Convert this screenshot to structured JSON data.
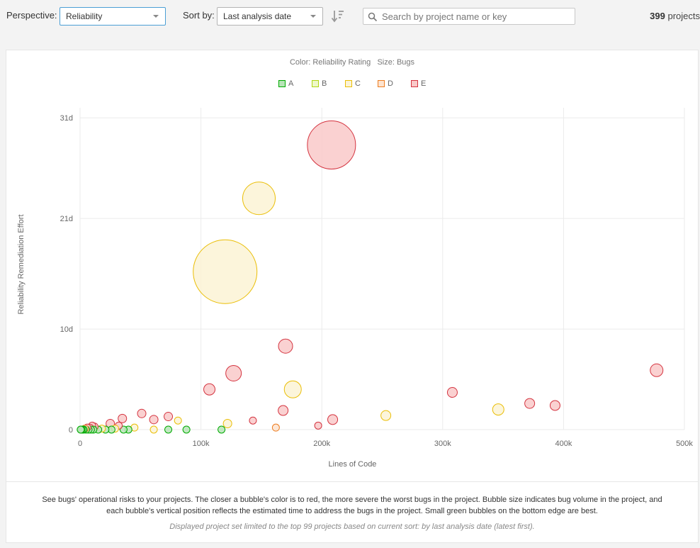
{
  "toolbar": {
    "perspective_label": "Perspective:",
    "perspective_value": "Reliability",
    "sort_label": "Sort by:",
    "sort_value": "Last analysis date",
    "search_placeholder": "Search by project name or key",
    "count_value": "399",
    "count_suffix": " projects"
  },
  "chart_header": {
    "subtitle": "Color: Reliability Rating   Size: Bugs"
  },
  "legend": [
    {
      "label": "A",
      "fill": "#b7e4b7",
      "stroke": "#00aa00"
    },
    {
      "label": "B",
      "fill": "#eef8c8",
      "stroke": "#b0d513"
    },
    {
      "label": "C",
      "fill": "#fbf3d5",
      "stroke": "#eabe06"
    },
    {
      "label": "D",
      "fill": "#fde3cf",
      "stroke": "#ed7d20"
    },
    {
      "label": "E",
      "fill": "#f9c9c9",
      "stroke": "#d4333f"
    }
  ],
  "chart_data": {
    "type": "scatter",
    "xlabel": "Lines of Code",
    "ylabel": "Reliability Remediation Effort",
    "x_ticks": [
      {
        "value": 0,
        "label": "0"
      },
      {
        "value": 100000,
        "label": "100k"
      },
      {
        "value": 200000,
        "label": "200k"
      },
      {
        "value": 300000,
        "label": "300k"
      },
      {
        "value": 400000,
        "label": "400k"
      },
      {
        "value": 500000,
        "label": "500k"
      }
    ],
    "y_ticks": [
      {
        "value": 0,
        "label": "0"
      },
      {
        "value": 10,
        "label": "10d"
      },
      {
        "value": 21,
        "label": "21d"
      },
      {
        "value": 31,
        "label": "31d"
      }
    ],
    "xlim": [
      0,
      500000
    ],
    "ylim": [
      0,
      32
    ],
    "grid": true,
    "size_legend": "Bugs",
    "color_legend": "Reliability Rating",
    "points": [
      {
        "x": 208000,
        "y": 28.3,
        "r": 34,
        "rating": "E"
      },
      {
        "x": 148000,
        "y": 23.0,
        "r": 23,
        "rating": "C"
      },
      {
        "x": 120000,
        "y": 15.7,
        "r": 45,
        "rating": "C"
      },
      {
        "x": 170000,
        "y": 8.3,
        "r": 10,
        "rating": "E"
      },
      {
        "x": 127000,
        "y": 5.6,
        "r": 11,
        "rating": "E"
      },
      {
        "x": 107000,
        "y": 4.0,
        "r": 8,
        "rating": "E"
      },
      {
        "x": 176000,
        "y": 4.0,
        "r": 12,
        "rating": "C"
      },
      {
        "x": 477000,
        "y": 5.9,
        "r": 9,
        "rating": "E"
      },
      {
        "x": 308000,
        "y": 3.7,
        "r": 7,
        "rating": "E"
      },
      {
        "x": 372000,
        "y": 2.6,
        "r": 7,
        "rating": "E"
      },
      {
        "x": 393000,
        "y": 2.4,
        "r": 7,
        "rating": "E"
      },
      {
        "x": 346000,
        "y": 2.0,
        "r": 8,
        "rating": "C"
      },
      {
        "x": 253000,
        "y": 1.4,
        "r": 7,
        "rating": "C"
      },
      {
        "x": 168000,
        "y": 1.9,
        "r": 7,
        "rating": "E"
      },
      {
        "x": 209000,
        "y": 1.0,
        "r": 7,
        "rating": "E"
      },
      {
        "x": 197000,
        "y": 0.4,
        "r": 5,
        "rating": "E"
      },
      {
        "x": 143000,
        "y": 0.9,
        "r": 5,
        "rating": "E"
      },
      {
        "x": 162000,
        "y": 0.2,
        "r": 5,
        "rating": "D"
      },
      {
        "x": 122000,
        "y": 0.6,
        "r": 6,
        "rating": "C"
      },
      {
        "x": 117000,
        "y": 0.0,
        "r": 5,
        "rating": "A"
      },
      {
        "x": 88000,
        "y": 0.0,
        "r": 5,
        "rating": "A"
      },
      {
        "x": 73000,
        "y": 0.0,
        "r": 5,
        "rating": "A"
      },
      {
        "x": 73000,
        "y": 1.3,
        "r": 6,
        "rating": "E"
      },
      {
        "x": 81000,
        "y": 0.9,
        "r": 5,
        "rating": "C"
      },
      {
        "x": 61000,
        "y": 1.0,
        "r": 6,
        "rating": "E"
      },
      {
        "x": 61000,
        "y": 0.0,
        "r": 5,
        "rating": "C"
      },
      {
        "x": 51000,
        "y": 1.6,
        "r": 6,
        "rating": "E"
      },
      {
        "x": 45000,
        "y": 0.2,
        "r": 5,
        "rating": "C"
      },
      {
        "x": 40000,
        "y": 0.0,
        "r": 5,
        "rating": "A"
      },
      {
        "x": 36000,
        "y": 0.0,
        "r": 5,
        "rating": "A"
      },
      {
        "x": 35000,
        "y": 1.1,
        "r": 6,
        "rating": "E"
      },
      {
        "x": 32000,
        "y": 0.4,
        "r": 5,
        "rating": "E"
      },
      {
        "x": 29000,
        "y": 0.1,
        "r": 5,
        "rating": "C"
      },
      {
        "x": 25000,
        "y": 0.6,
        "r": 6,
        "rating": "E"
      },
      {
        "x": 26000,
        "y": 0.0,
        "r": 5,
        "rating": "A"
      },
      {
        "x": 21000,
        "y": 0.0,
        "r": 5,
        "rating": "A"
      },
      {
        "x": 18000,
        "y": 0.1,
        "r": 5,
        "rating": "C"
      },
      {
        "x": 15000,
        "y": 0.0,
        "r": 5,
        "rating": "A"
      },
      {
        "x": 12000,
        "y": 0.3,
        "r": 5,
        "rating": "E"
      },
      {
        "x": 10000,
        "y": 0.4,
        "r": 5,
        "rating": "E"
      },
      {
        "x": 11000,
        "y": 0.0,
        "r": 5,
        "rating": "A"
      },
      {
        "x": 8000,
        "y": 0.2,
        "r": 5,
        "rating": "E"
      },
      {
        "x": 9000,
        "y": 0.0,
        "r": 5,
        "rating": "A"
      },
      {
        "x": 7000,
        "y": 0.0,
        "r": 5,
        "rating": "A"
      },
      {
        "x": 6000,
        "y": 0.2,
        "r": 5,
        "rating": "E"
      },
      {
        "x": 5000,
        "y": 0.0,
        "r": 5,
        "rating": "A"
      },
      {
        "x": 4000,
        "y": 0.1,
        "r": 5,
        "rating": "D"
      },
      {
        "x": 3000,
        "y": 0.0,
        "r": 5,
        "rating": "A"
      },
      {
        "x": 2000,
        "y": 0.0,
        "r": 5,
        "rating": "A"
      },
      {
        "x": 1000,
        "y": 0.0,
        "r": 5,
        "rating": "A"
      },
      {
        "x": 500,
        "y": 0.0,
        "r": 5,
        "rating": "A"
      }
    ]
  },
  "footer": {
    "description": "See bugs' operational risks to your projects. The closer a bubble's color is to red, the more severe the worst bugs in the project. Bubble size indicates bug volume in the project, and each bubble's vertical position reflects the estimated time to address the bugs in the project. Small green bubbles on the bottom edge are best.",
    "note": "Displayed project set limited to the top 99 projects based on current sort: by last analysis date (latest first)."
  }
}
